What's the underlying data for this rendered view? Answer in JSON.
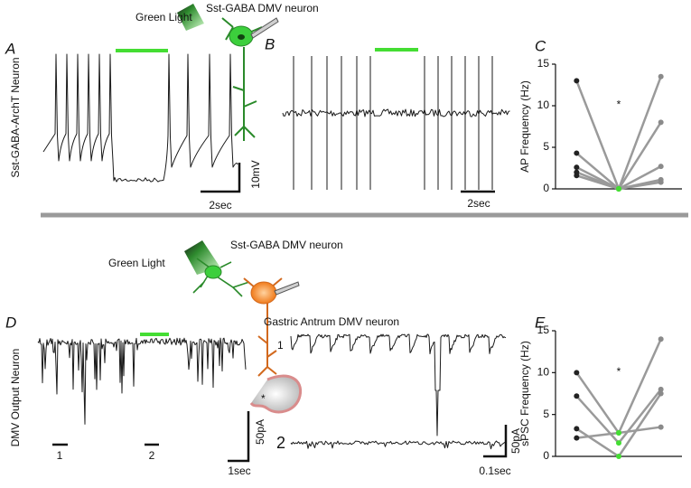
{
  "top": {
    "light": "Green Light",
    "neuron": "Sst-GABA DMV neuron"
  },
  "panel_a": {
    "letter": "A",
    "ylabel": "Sst-GABA-ArchT Neuron",
    "scale_y": "10mV",
    "scale_x": "2sec"
  },
  "panel_b": {
    "letter": "B",
    "scale_x": "2sec"
  },
  "panel_c": {
    "letter": "C"
  },
  "bottom": {
    "neuron": "Sst-GABA DMV neuron",
    "light": "Green Light",
    "target": "Gastric Antrum DMV neuron",
    "asterisk": "*"
  },
  "panel_d": {
    "letter": "D",
    "ylabel": "DMV Output Neuron",
    "marker_1": "1",
    "marker_2": "2",
    "trace_1": "1",
    "trace_2": "2",
    "scale_y": "50pA",
    "scale_x": "1sec",
    "inset_scale_y": "50pA",
    "inset_scale_x": "0.1sec"
  },
  "panel_e": {
    "letter": "E"
  },
  "chart_data": [
    {
      "type": "line",
      "y_label": "AP Frequency (Hz)",
      "categories": [
        null,
        null,
        null
      ],
      "color": "#9a9a9a",
      "point_colors": [
        "#222222",
        "#44dd33",
        "#8a8a8a"
      ],
      "series": [
        {
          "values": [
            13,
            0,
            13.5
          ]
        },
        {
          "values": [
            4.3,
            0,
            8
          ]
        },
        {
          "values": [
            2.6,
            0,
            2.7
          ]
        },
        {
          "values": [
            2,
            0,
            1.1
          ]
        },
        {
          "values": [
            1.6,
            0,
            0.8
          ]
        }
      ],
      "ylim": [
        0,
        15
      ],
      "yticks": [
        0,
        5,
        10,
        15
      ],
      "annotation": "*"
    },
    {
      "type": "line",
      "y_label": "sPSC Frequency (Hz)",
      "categories": [
        null,
        null,
        null
      ],
      "color": "#9a9a9a",
      "point_colors": [
        "#222222",
        "#44dd33",
        "#8a8a8a"
      ],
      "series": [
        {
          "values": [
            10,
            2.8,
            14
          ]
        },
        {
          "values": [
            7.2,
            1.6,
            8
          ]
        },
        {
          "values": [
            3.3,
            0,
            7.5
          ]
        },
        {
          "values": [
            2.2,
            2.8,
            3.5
          ]
        }
      ],
      "ylim": [
        0,
        15
      ],
      "yticks": [
        0,
        5,
        10,
        15
      ],
      "annotation": "*"
    }
  ]
}
